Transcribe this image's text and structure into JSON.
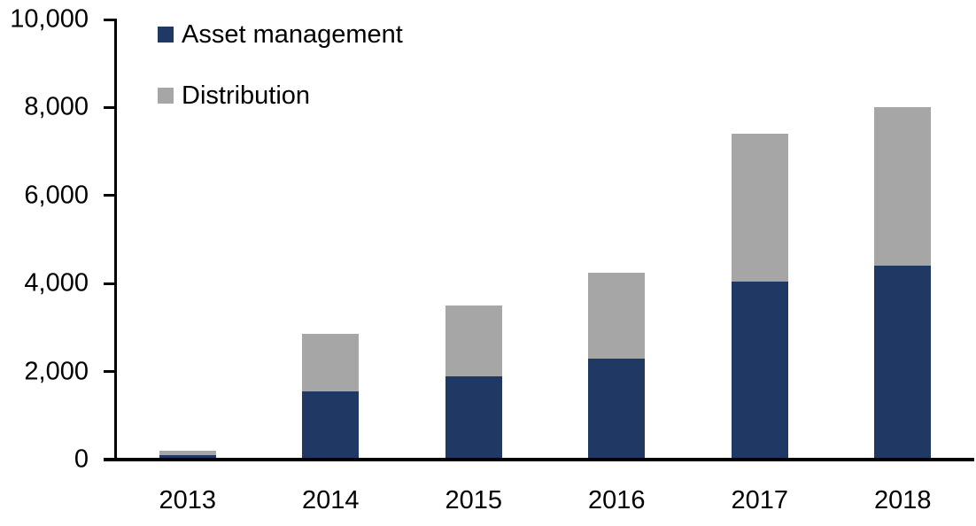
{
  "chart_data": {
    "type": "bar",
    "stacked": true,
    "title": "",
    "xlabel": "",
    "ylabel": "",
    "categories": [
      "2013",
      "2014",
      "2015",
      "2016",
      "2017",
      "2018"
    ],
    "series": [
      {
        "name": "Asset management",
        "color": "#1F3864",
        "values": [
          100,
          1550,
          1900,
          2300,
          4050,
          4400
        ]
      },
      {
        "name": "Distribution",
        "color": "#A6A6A6",
        "values": [
          100,
          1300,
          1600,
          1950,
          3350,
          3600
        ]
      }
    ],
    "totals": [
      200,
      2850,
      3500,
      4250,
      7400,
      8000
    ],
    "ylim": [
      0,
      10000
    ],
    "yticks": [
      0,
      2000,
      4000,
      6000,
      8000,
      10000
    ],
    "ytick_labels": [
      "0",
      "2,000",
      "4,000",
      "6,000",
      "8,000",
      "10,000"
    ],
    "grid": false,
    "legend_position": "top-left",
    "axis_color": "#000000",
    "text_color": "#000000",
    "background_color": "#ffffff"
  }
}
